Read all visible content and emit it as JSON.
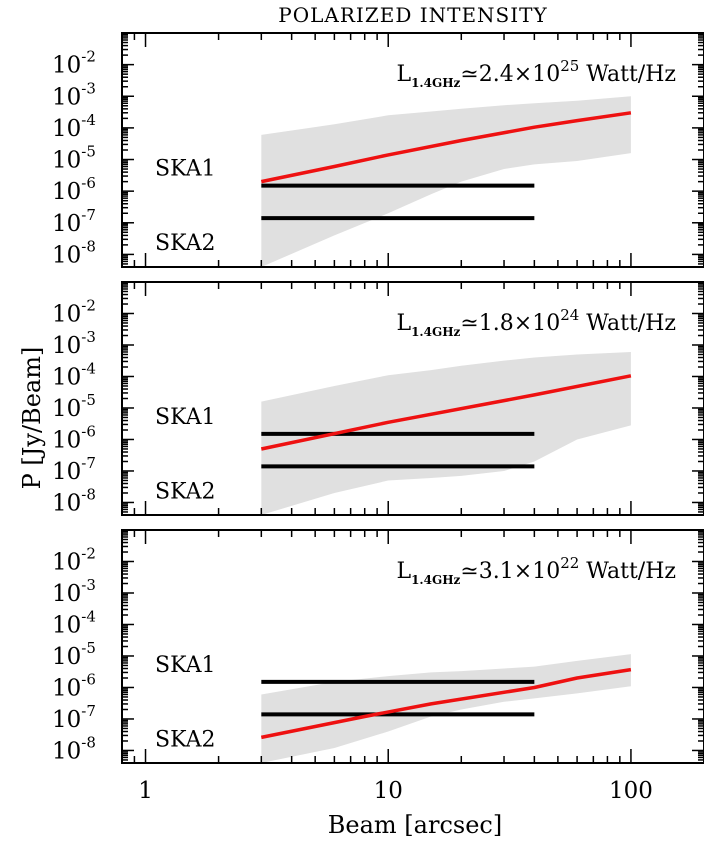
{
  "title": "POLARIZED INTENSITY",
  "ylabel": "P [Jy/Beam]",
  "xlabel": "Beam [arcsec]",
  "x_tick_labels": [
    "1",
    "10",
    "100"
  ],
  "colors": {
    "model_line": "#ee1111",
    "band_fill": "#e0e0e0",
    "ska_line": "#000000"
  },
  "chart_data": [
    {
      "type": "line",
      "annotation": {
        "lum_prefix": "L",
        "lum_subscript": "1.4GHz",
        "lum_value": "≃2.4×10",
        "lum_exponent": "25",
        "lum_unit": " Watt/Hz"
      },
      "xscale": "log",
      "yscale": "log",
      "xlim": [
        0.8,
        200
      ],
      "ylim": [
        4e-09,
        0.1
      ],
      "y_ticks": [
        {
          "base": "10",
          "exp": "-2",
          "value": 0.01
        },
        {
          "base": "10",
          "exp": "-3",
          "value": 0.001
        },
        {
          "base": "10",
          "exp": "-4",
          "value": 0.0001
        },
        {
          "base": "10",
          "exp": "-5",
          "value": 1e-05
        },
        {
          "base": "10",
          "exp": "-6",
          "value": 1e-06
        },
        {
          "base": "10",
          "exp": "-7",
          "value": 1e-07
        },
        {
          "base": "10",
          "exp": "-8",
          "value": 1e-08
        }
      ],
      "series": [
        {
          "x": [
            3,
            6,
            10,
            20,
            40,
            60,
            100
          ],
          "values": [
            2e-06,
            6e-06,
            1.4e-05,
            4e-05,
            0.000105,
            0.00017,
            0.0003
          ]
        }
      ],
      "band": {
        "x": [
          3,
          6,
          10,
          15,
          20,
          30,
          40,
          60,
          100
        ],
        "upper": [
          6e-05,
          0.00013,
          0.00025,
          0.00033,
          0.0004,
          0.00052,
          0.0006,
          0.00072,
          0.001
        ],
        "lower": [
          4e-09,
          4e-08,
          2e-07,
          8e-07,
          2e-06,
          5e-06,
          7e-06,
          9e-06,
          1.6e-05
        ]
      },
      "reference_lines": [
        {
          "label": "SKA1",
          "y": 1.5e-06,
          "x": [
            3,
            40
          ]
        },
        {
          "label": "SKA2",
          "y": 1.4e-07,
          "x": [
            3,
            40
          ]
        }
      ]
    },
    {
      "type": "line",
      "annotation": {
        "lum_prefix": "L",
        "lum_subscript": "1.4GHz",
        "lum_value": "≃1.8×10",
        "lum_exponent": "24",
        "lum_unit": " Watt/Hz"
      },
      "xscale": "log",
      "yscale": "log",
      "xlim": [
        0.8,
        200
      ],
      "ylim": [
        4e-09,
        0.1
      ],
      "y_ticks": [
        {
          "base": "10",
          "exp": "-2",
          "value": 0.01
        },
        {
          "base": "10",
          "exp": "-3",
          "value": 0.001
        },
        {
          "base": "10",
          "exp": "-4",
          "value": 0.0001
        },
        {
          "base": "10",
          "exp": "-5",
          "value": 1e-05
        },
        {
          "base": "10",
          "exp": "-6",
          "value": 1e-06
        },
        {
          "base": "10",
          "exp": "-7",
          "value": 1e-07
        },
        {
          "base": "10",
          "exp": "-8",
          "value": 1e-08
        }
      ],
      "series": [
        {
          "x": [
            3,
            10,
            40,
            100
          ],
          "values": [
            5e-07,
            3.5e-06,
            2.6e-05,
            0.000105
          ]
        }
      ],
      "band": {
        "x": [
          3,
          6,
          10,
          15,
          20,
          30,
          40,
          60,
          100
        ],
        "upper": [
          1.6e-05,
          5e-05,
          0.00011,
          0.00016,
          0.00022,
          0.00032,
          0.0004,
          0.0005,
          0.0006
        ],
        "lower": [
          4e-09,
          2e-08,
          5e-08,
          6e-08,
          7e-08,
          1e-07,
          2e-07,
          1e-06,
          2.8e-06
        ]
      },
      "reference_lines": [
        {
          "label": "SKA1",
          "y": 1.5e-06,
          "x": [
            3,
            40
          ]
        },
        {
          "label": "SKA2",
          "y": 1.4e-07,
          "x": [
            3,
            40
          ]
        }
      ]
    },
    {
      "type": "line",
      "annotation": {
        "lum_prefix": "L",
        "lum_subscript": "1.4GHz",
        "lum_value": "≃3.1×10",
        "lum_exponent": "22",
        "lum_unit": " Watt/Hz"
      },
      "xscale": "log",
      "yscale": "log",
      "xlim": [
        0.8,
        200
      ],
      "ylim": [
        4e-09,
        0.1
      ],
      "y_ticks": [
        {
          "base": "10",
          "exp": "-2",
          "value": 0.01
        },
        {
          "base": "10",
          "exp": "-3",
          "value": 0.001
        },
        {
          "base": "10",
          "exp": "-4",
          "value": 0.0001
        },
        {
          "base": "10",
          "exp": "-5",
          "value": 1e-05
        },
        {
          "base": "10",
          "exp": "-6",
          "value": 1e-06
        },
        {
          "base": "10",
          "exp": "-7",
          "value": 1e-07
        },
        {
          "base": "10",
          "exp": "-8",
          "value": 1e-08
        }
      ],
      "series": [
        {
          "x": [
            3,
            8,
            15,
            40,
            60,
            100
          ],
          "values": [
            2.6e-08,
            1.2e-07,
            3e-07,
            1e-06,
            2e-06,
            3.7e-06
          ]
        }
      ],
      "band": {
        "x": [
          3,
          6,
          10,
          15,
          20,
          30,
          40,
          60,
          100
        ],
        "upper": [
          6e-07,
          1.5e-06,
          2.3e-06,
          3e-06,
          3.3e-06,
          4e-06,
          4.6e-06,
          7e-06,
          1.15e-05
        ],
        "lower": [
          4e-09,
          1.2e-08,
          4e-08,
          1.2e-07,
          2e-07,
          3.5e-07,
          4.5e-07,
          6.5e-07,
          1.1e-06
        ]
      },
      "reference_lines": [
        {
          "label": "SKA1",
          "y": 1.5e-06,
          "x": [
            3,
            40
          ]
        },
        {
          "label": "SKA2",
          "y": 1.4e-07,
          "x": [
            3,
            40
          ]
        }
      ]
    }
  ]
}
